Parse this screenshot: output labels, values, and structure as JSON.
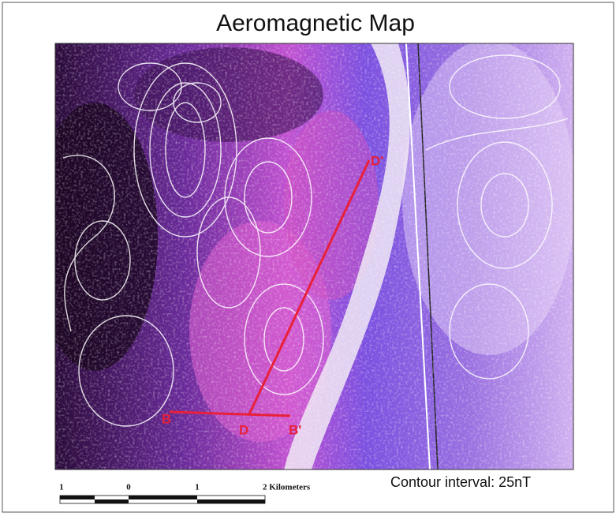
{
  "title": "Aeromagnetic Map",
  "map_labels": {
    "d_prime": "D'",
    "d": "D",
    "b": "B",
    "b_prime": "B'"
  },
  "scale_bar": {
    "labels": [
      "1",
      "0",
      "1",
      "2 Kilometers"
    ]
  },
  "contour_note": "Contour interval: 25nT"
}
